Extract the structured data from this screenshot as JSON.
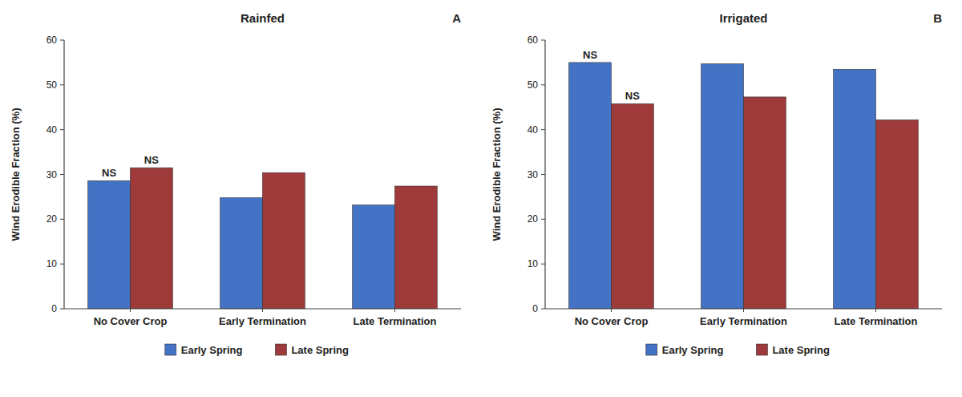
{
  "chart_data": [
    {
      "type": "bar",
      "title": "Rainfed",
      "annotations": [
        {
          "text": "A"
        },
        {
          "text": "NS",
          "series": "Early Spring",
          "category": "No Cover Crop"
        },
        {
          "text": "NS",
          "series": "Late Spring",
          "category": "No Cover Crop"
        }
      ],
      "categories": [
        "No Cover Crop",
        "Early Termination",
        "Late Termination"
      ],
      "series": [
        {
          "name": "Early Spring",
          "color": "#4472C4",
          "values": [
            28.6,
            24.8,
            23.2
          ]
        },
        {
          "name": "Late Spring",
          "color": "#9E3A3A",
          "values": [
            31.5,
            30.4,
            27.4
          ]
        }
      ],
      "y_label": "Wind Erodible Fraction (%)",
      "ylim": [
        0,
        60
      ],
      "yticks": [
        0,
        10,
        20,
        30,
        40,
        50,
        60
      ],
      "grid": false,
      "legend": "bottom"
    },
    {
      "type": "bar",
      "title": "Irrigated",
      "annotations": [
        {
          "text": "B"
        },
        {
          "text": "NS",
          "series": "Early Spring",
          "category": "No Cover Crop"
        },
        {
          "text": "NS",
          "series": "Late Spring",
          "category": "No Cover Crop"
        }
      ],
      "categories": [
        "No Cover Crop",
        "Early Termination",
        "Late Termination"
      ],
      "series": [
        {
          "name": "Early Spring",
          "color": "#4472C4",
          "values": [
            55.0,
            54.7,
            53.5
          ]
        },
        {
          "name": "Late Spring",
          "color": "#9E3A3A",
          "values": [
            45.8,
            47.3,
            42.2
          ]
        }
      ],
      "y_label": "Wind Erodible Fraction (%)",
      "ylim": [
        0,
        60
      ],
      "yticks": [
        0,
        10,
        20,
        30,
        40,
        50,
        60
      ],
      "grid": false,
      "legend": "bottom"
    }
  ]
}
